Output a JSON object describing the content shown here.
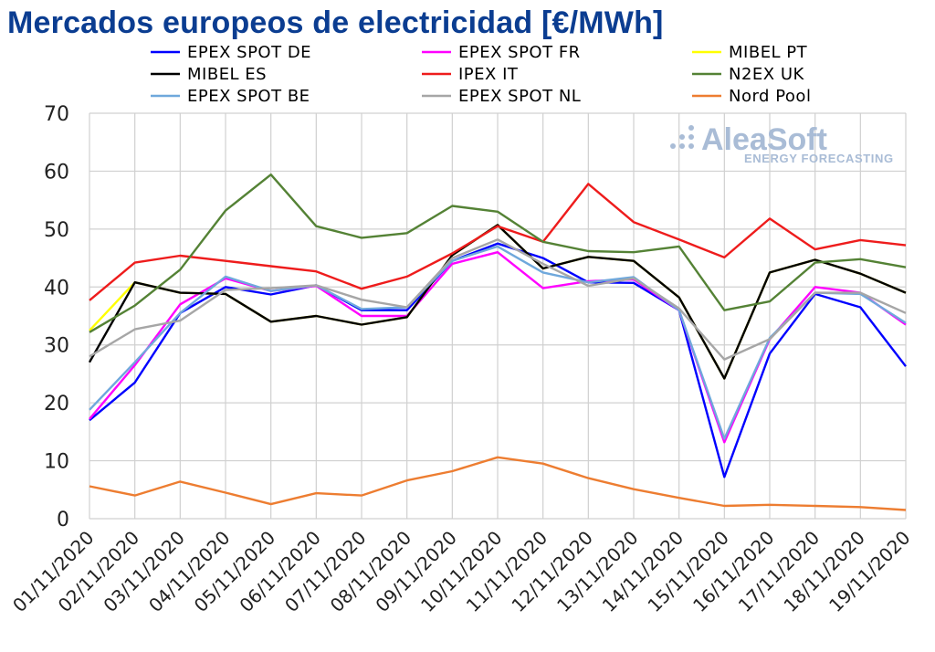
{
  "chart_data": {
    "type": "line",
    "title": "Mercados europeos de electricidad [€/MWh]",
    "ylim": [
      0,
      70
    ],
    "yticks": [
      0,
      10,
      20,
      30,
      40,
      50,
      60,
      70
    ],
    "grid": true,
    "legend_position": "top",
    "categories": [
      "01/11/2020",
      "02/11/2020",
      "03/11/2020",
      "04/11/2020",
      "05/11/2020",
      "06/11/2020",
      "07/11/2020",
      "08/11/2020",
      "09/11/2020",
      "10/11/2020",
      "11/11/2020",
      "12/11/2020",
      "13/11/2020",
      "14/11/2020",
      "15/11/2020",
      "16/11/2020",
      "17/11/2020",
      "18/11/2020",
      "19/11/2020"
    ],
    "series": [
      {
        "name": "EPEX SPOT DE",
        "color": "#0000ff",
        "values": [
          17.0,
          23.5,
          35.5,
          40.0,
          38.7,
          40.3,
          36.0,
          36.0,
          44.5,
          47.5,
          45.0,
          40.8,
          40.7,
          36.0,
          7.2,
          28.5,
          38.8,
          36.5,
          26.3
        ]
      },
      {
        "name": "EPEX SPOT FR",
        "color": "#ff00ff",
        "values": [
          17.2,
          26.5,
          37.0,
          41.5,
          39.3,
          40.2,
          35.0,
          35.0,
          44.0,
          46.0,
          39.8,
          41.0,
          41.3,
          36.0,
          13.2,
          31.0,
          40.0,
          39.0,
          33.5
        ]
      },
      {
        "name": "MIBEL PT",
        "color": "#ffff00",
        "values": [
          32.5,
          40.8,
          39.0,
          38.8,
          34.0,
          35.0,
          33.5,
          34.8,
          45.5,
          50.7,
          43.2,
          45.2,
          44.5,
          38.2,
          24.2,
          42.5,
          44.7,
          42.3,
          39.0
        ]
      },
      {
        "name": "MIBEL ES",
        "color": "#000000",
        "values": [
          27.0,
          40.8,
          39.0,
          38.8,
          34.0,
          35.0,
          33.5,
          34.8,
          45.5,
          50.7,
          43.2,
          45.2,
          44.5,
          38.2,
          24.2,
          42.5,
          44.7,
          42.3,
          39.0
        ]
      },
      {
        "name": "IPEX IT",
        "color": "#ee1c1c",
        "values": [
          37.7,
          44.2,
          45.4,
          44.5,
          43.6,
          42.7,
          39.7,
          41.8,
          45.8,
          50.5,
          47.8,
          57.8,
          51.2,
          48.2,
          45.1,
          51.8,
          46.5,
          48.1,
          47.2
        ]
      },
      {
        "name": "N2EX UK",
        "color": "#548235",
        "values": [
          32.2,
          36.8,
          43.0,
          53.2,
          59.4,
          50.5,
          48.5,
          49.3,
          54.0,
          53.0,
          47.8,
          46.2,
          46.0,
          47.0,
          36.0,
          37.5,
          44.2,
          44.8,
          43.4
        ]
      },
      {
        "name": "EPEX SPOT BE",
        "color": "#6fa8dc",
        "values": [
          18.8,
          27.0,
          35.5,
          41.8,
          39.3,
          40.3,
          36.2,
          36.5,
          44.5,
          47.0,
          42.5,
          40.8,
          41.7,
          36.0,
          13.8,
          31.2,
          39.0,
          38.8,
          33.8
        ]
      },
      {
        "name": "EPEX SPOT NL",
        "color": "#a6a6a6",
        "values": [
          28.0,
          32.7,
          34.2,
          39.5,
          39.8,
          40.3,
          37.8,
          36.5,
          45.0,
          48.2,
          44.0,
          40.2,
          41.5,
          36.3,
          27.5,
          31.0,
          39.0,
          39.0,
          35.5
        ]
      },
      {
        "name": "Nord Pool",
        "color": "#ed7d31",
        "values": [
          5.6,
          4.0,
          6.4,
          4.5,
          2.5,
          4.4,
          4.0,
          6.6,
          8.2,
          10.6,
          9.5,
          7.0,
          5.1,
          3.6,
          2.2,
          2.4,
          2.2,
          2.0,
          1.5
        ]
      }
    ]
  },
  "logo": {
    "name": "AleaSoft",
    "tagline": "ENERGY FORECASTING"
  }
}
